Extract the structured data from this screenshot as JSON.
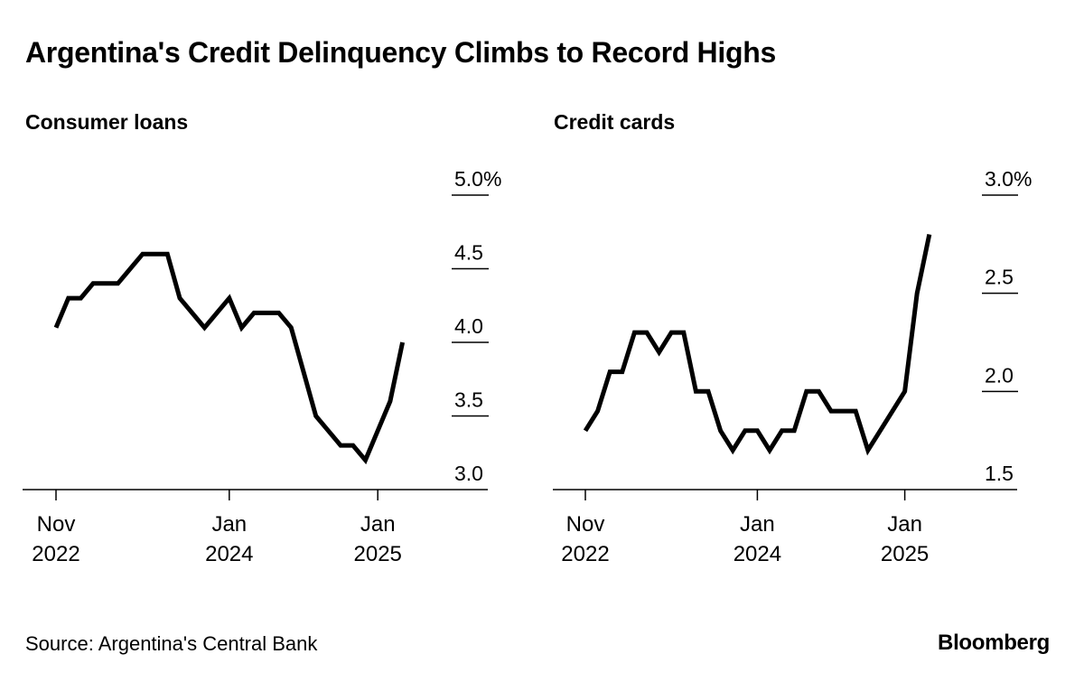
{
  "title": "Argentina's Credit Delinquency Climbs to Record Highs",
  "source": "Source: Argentina's Central Bank",
  "brand": "Bloomberg",
  "colors": {
    "line": "#000000",
    "axis": "#000000",
    "background": "#ffffff"
  },
  "chart_data": [
    {
      "type": "line",
      "title": "Consumer loans",
      "x_ticks": [
        {
          "index": 0,
          "line1": "Nov",
          "line2": "2022"
        },
        {
          "index": 14,
          "line1": "Jan",
          "line2": "2024"
        },
        {
          "index": 26,
          "line1": "Jan",
          "line2": "2025"
        }
      ],
      "ylim": [
        3.0,
        5.0
      ],
      "y_ticks": [
        {
          "value": 5.0,
          "label": "5.0%"
        },
        {
          "value": 4.5,
          "label": "4.5"
        },
        {
          "value": 4.0,
          "label": "4.0"
        },
        {
          "value": 3.5,
          "label": "3.5"
        },
        {
          "value": 3.0,
          "label": "3.0"
        }
      ],
      "series": [
        {
          "name": "Consumer loans delinquency (%)",
          "values": [
            4.1,
            4.3,
            4.3,
            4.4,
            4.4,
            4.4,
            4.5,
            4.6,
            4.6,
            4.6,
            4.3,
            4.2,
            4.1,
            4.2,
            4.3,
            4.1,
            4.2,
            4.2,
            4.2,
            4.1,
            3.8,
            3.5,
            3.4,
            3.3,
            3.3,
            3.2,
            3.4,
            3.6,
            4.0
          ]
        }
      ]
    },
    {
      "type": "line",
      "title": "Credit cards",
      "x_ticks": [
        {
          "index": 0,
          "line1": "Nov",
          "line2": "2022"
        },
        {
          "index": 14,
          "line1": "Jan",
          "line2": "2024"
        },
        {
          "index": 26,
          "line1": "Jan",
          "line2": "2025"
        }
      ],
      "ylim": [
        1.5,
        3.0
      ],
      "y_ticks": [
        {
          "value": 3.0,
          "label": "3.0%"
        },
        {
          "value": 2.5,
          "label": "2.5"
        },
        {
          "value": 2.0,
          "label": "2.0"
        },
        {
          "value": 1.5,
          "label": "1.5"
        }
      ],
      "series": [
        {
          "name": "Credit card delinquency (%)",
          "values": [
            1.8,
            1.9,
            2.1,
            2.1,
            2.3,
            2.3,
            2.2,
            2.3,
            2.3,
            2.0,
            2.0,
            1.8,
            1.7,
            1.8,
            1.8,
            1.7,
            1.8,
            1.8,
            2.0,
            2.0,
            1.9,
            1.9,
            1.9,
            1.7,
            1.8,
            1.9,
            2.0,
            2.5,
            2.8
          ]
        }
      ]
    }
  ]
}
